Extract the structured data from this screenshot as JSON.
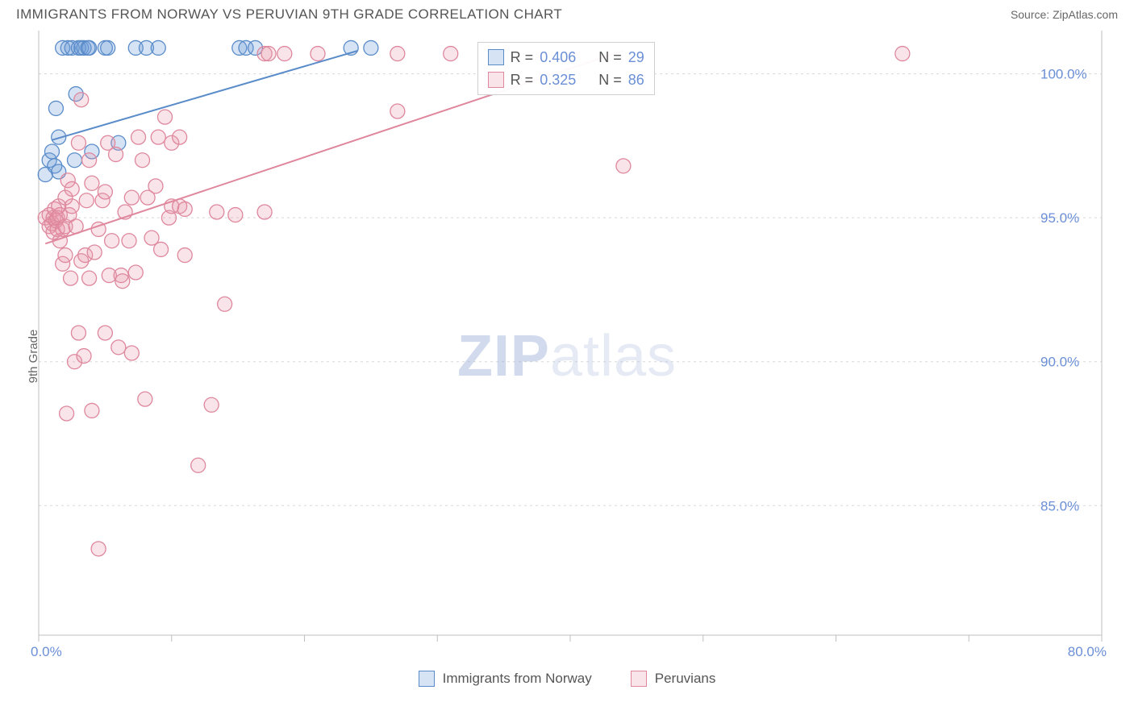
{
  "title": "IMMIGRANTS FROM NORWAY VS PERUVIAN 9TH GRADE CORRELATION CHART",
  "source": "Source: ZipAtlas.com",
  "ylabel": "9th Grade",
  "watermark_bold": "ZIP",
  "watermark_rest": "atlas",
  "chart": {
    "type": "scatter",
    "background_color": "#ffffff",
    "grid_color": "#d8d8d8",
    "axis_color": "#bfbfbf",
    "xlim": [
      0,
      80
    ],
    "ylim": [
      80.5,
      101.5
    ],
    "xticks": [
      0,
      10,
      20,
      30,
      40,
      50,
      60,
      70,
      80
    ],
    "xtick_labels": {
      "0": "0.0%",
      "80": "80.0%"
    },
    "yticks": [
      85,
      90,
      95,
      100
    ],
    "ytick_labels": {
      "85": "85.0%",
      "90": "90.0%",
      "95": "95.0%",
      "100": "100.0%"
    },
    "marker_radius": 9,
    "marker_opacity": 0.35,
    "line_width": 2,
    "series": [
      {
        "name": "Immigrants from Norway",
        "color": "#6b9bd8",
        "fill": "rgba(107,155,216,0.28)",
        "stroke": "#5a8cc9",
        "R": "0.406",
        "N": "29",
        "trend_line": {
          "x1": 1,
          "y1": 97.7,
          "x2": 24,
          "y2": 100.8
        },
        "points": [
          [
            0.5,
            96.5
          ],
          [
            0.8,
            97.0
          ],
          [
            1.0,
            97.3
          ],
          [
            1.2,
            96.8
          ],
          [
            1.3,
            98.8
          ],
          [
            1.5,
            97.8
          ],
          [
            1.5,
            96.6
          ],
          [
            1.8,
            100.9
          ],
          [
            2.2,
            100.9
          ],
          [
            2.5,
            100.9
          ],
          [
            2.7,
            97.0
          ],
          [
            2.8,
            99.3
          ],
          [
            3.0,
            100.9
          ],
          [
            3.2,
            100.9
          ],
          [
            3.4,
            100.9
          ],
          [
            3.7,
            100.9
          ],
          [
            3.8,
            100.9
          ],
          [
            4.0,
            97.3
          ],
          [
            5.0,
            100.9
          ],
          [
            5.2,
            100.9
          ],
          [
            6.0,
            97.6
          ],
          [
            7.3,
            100.9
          ],
          [
            8.1,
            100.9
          ],
          [
            9.0,
            100.9
          ],
          [
            15.1,
            100.9
          ],
          [
            15.6,
            100.9
          ],
          [
            16.3,
            100.9
          ],
          [
            23.5,
            100.9
          ],
          [
            25.0,
            100.9
          ]
        ]
      },
      {
        "name": "Peruvians",
        "color": "#e697ab",
        "fill": "rgba(230,151,171,0.26)",
        "stroke": "#de879d",
        "R": "0.325",
        "N": "86",
        "trend_line": {
          "x1": 0.5,
          "y1": 94.1,
          "x2": 44,
          "y2": 100.8
        },
        "points": [
          [
            0.5,
            95.0
          ],
          [
            0.8,
            95.1
          ],
          [
            0.8,
            94.7
          ],
          [
            1.0,
            94.8
          ],
          [
            1.1,
            95.0
          ],
          [
            1.1,
            94.5
          ],
          [
            1.2,
            95.3
          ],
          [
            1.3,
            94.9
          ],
          [
            1.4,
            94.6
          ],
          [
            1.4,
            95.0
          ],
          [
            1.5,
            95.4
          ],
          [
            1.6,
            94.2
          ],
          [
            1.6,
            95.1
          ],
          [
            1.8,
            94.6
          ],
          [
            1.8,
            93.4
          ],
          [
            2.0,
            94.7
          ],
          [
            2.0,
            95.7
          ],
          [
            2.0,
            93.7
          ],
          [
            2.1,
            88.2
          ],
          [
            2.2,
            96.3
          ],
          [
            2.3,
            95.1
          ],
          [
            2.4,
            92.9
          ],
          [
            2.5,
            95.4
          ],
          [
            2.5,
            96.0
          ],
          [
            2.7,
            90.0
          ],
          [
            2.8,
            94.7
          ],
          [
            3.0,
            97.6
          ],
          [
            3.0,
            91.0
          ],
          [
            3.2,
            99.1
          ],
          [
            3.2,
            93.5
          ],
          [
            3.4,
            90.2
          ],
          [
            3.5,
            93.7
          ],
          [
            3.6,
            95.6
          ],
          [
            3.8,
            97.0
          ],
          [
            3.8,
            92.9
          ],
          [
            4.0,
            88.3
          ],
          [
            4.0,
            96.2
          ],
          [
            4.2,
            93.8
          ],
          [
            4.5,
            94.6
          ],
          [
            4.5,
            83.5
          ],
          [
            4.8,
            95.6
          ],
          [
            5.0,
            91.0
          ],
          [
            5.0,
            95.9
          ],
          [
            5.2,
            97.6
          ],
          [
            5.3,
            93.0
          ],
          [
            5.5,
            94.2
          ],
          [
            5.8,
            97.2
          ],
          [
            6.0,
            90.5
          ],
          [
            6.2,
            93.0
          ],
          [
            6.3,
            92.8
          ],
          [
            6.5,
            95.2
          ],
          [
            6.8,
            94.2
          ],
          [
            7.0,
            95.7
          ],
          [
            7.0,
            90.3
          ],
          [
            7.3,
            93.1
          ],
          [
            7.5,
            97.8
          ],
          [
            7.8,
            97.0
          ],
          [
            8.0,
            88.7
          ],
          [
            8.2,
            95.7
          ],
          [
            8.5,
            94.3
          ],
          [
            8.8,
            96.1
          ],
          [
            9.0,
            97.8
          ],
          [
            9.2,
            93.9
          ],
          [
            9.5,
            98.5
          ],
          [
            9.8,
            95.0
          ],
          [
            10.0,
            95.4
          ],
          [
            10.0,
            97.6
          ],
          [
            10.6,
            95.4
          ],
          [
            10.6,
            97.8
          ],
          [
            11.0,
            93.7
          ],
          [
            11.0,
            95.3
          ],
          [
            12.0,
            86.4
          ],
          [
            13.0,
            88.5
          ],
          [
            13.4,
            95.2
          ],
          [
            14.0,
            92.0
          ],
          [
            14.8,
            95.1
          ],
          [
            17.0,
            100.7
          ],
          [
            17.3,
            100.7
          ],
          [
            17.0,
            95.2
          ],
          [
            18.5,
            100.7
          ],
          [
            21.0,
            100.7
          ],
          [
            27.0,
            98.7
          ],
          [
            27.0,
            100.7
          ],
          [
            31.0,
            100.7
          ],
          [
            44.0,
            96.8
          ],
          [
            65.0,
            100.7
          ]
        ]
      }
    ]
  },
  "legend_box": {
    "rows": [
      {
        "swatch_fill": "rgba(107,155,216,0.28)",
        "swatch_stroke": "#5a8cc9",
        "R": "0.406",
        "N": "29"
      },
      {
        "swatch_fill": "rgba(230,151,171,0.26)",
        "swatch_stroke": "#de879d",
        "R": "0.325",
        "N": "86"
      }
    ]
  },
  "bottom_legend": [
    {
      "swatch_fill": "rgba(107,155,216,0.28)",
      "swatch_stroke": "#5a8cc9",
      "label": "Immigrants from Norway"
    },
    {
      "swatch_fill": "rgba(230,151,171,0.26)",
      "swatch_stroke": "#de879d",
      "label": "Peruvians"
    }
  ]
}
